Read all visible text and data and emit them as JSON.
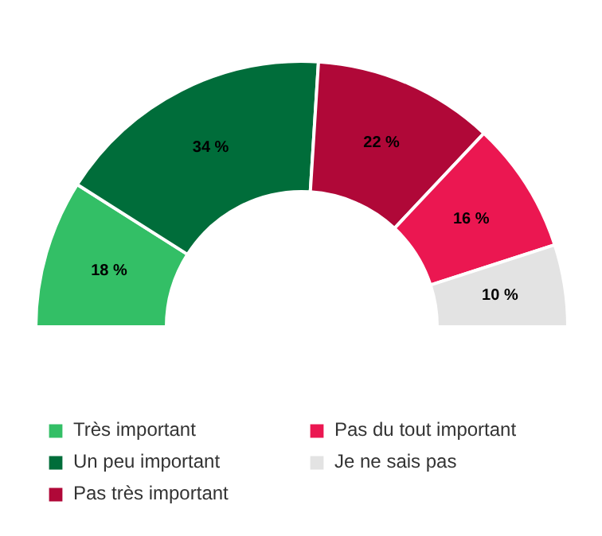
{
  "chart_data": {
    "type": "donut",
    "categories": [
      "Très important",
      "Un peu important",
      "Pas très important",
      "Pas du tout important",
      "Je ne sais pas"
    ],
    "values": [
      18,
      34,
      22,
      16,
      10
    ],
    "colors": [
      "#33bf66",
      "#006d3a",
      "#b00838",
      "#eb1751",
      "#e3e3e3"
    ],
    "value_labels": [
      "18 %",
      "34 %",
      "22 %",
      "16 %",
      "10 %"
    ],
    "legend": "bottom"
  }
}
